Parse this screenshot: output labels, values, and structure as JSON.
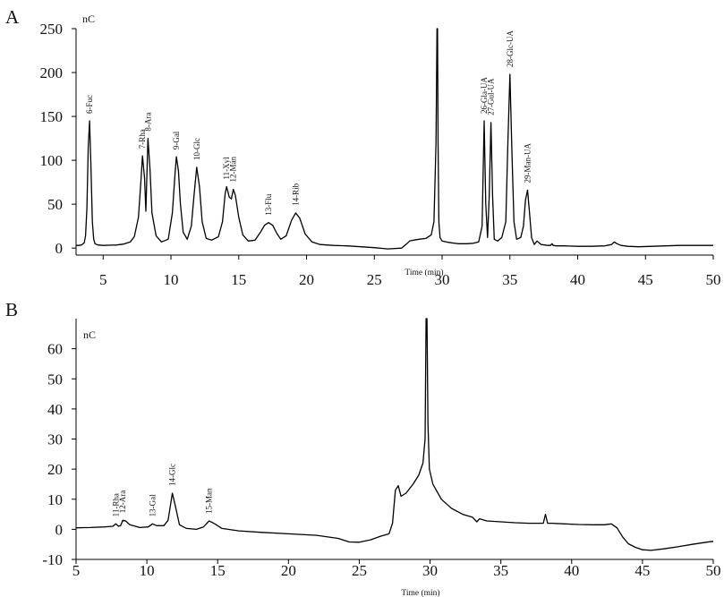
{
  "chart_data": [
    {
      "panel": "A",
      "type": "line",
      "ylabel": "nC",
      "xlabel": "Time (min)",
      "xlim": [
        3,
        50
      ],
      "ylim": [
        -8,
        250
      ],
      "xticks": [
        5,
        10,
        15,
        20,
        25,
        30,
        35,
        40,
        45,
        50
      ],
      "yticks": [
        0,
        50,
        100,
        150,
        200,
        250
      ],
      "baseline": 2.5,
      "peaks": [
        {
          "label": "6-Fuc",
          "x": 4.0,
          "y": 145
        },
        {
          "label": "7-Rha",
          "x": 7.9,
          "y": 105
        },
        {
          "label": "8-Ara",
          "x": 8.3,
          "y": 125
        },
        {
          "label": "9-Gal",
          "x": 10.4,
          "y": 104
        },
        {
          "label": "10-Glc",
          "x": 11.9,
          "y": 92
        },
        {
          "label": "11-Xyl",
          "x": 14.1,
          "y": 70
        },
        {
          "label": "12-Man",
          "x": 14.6,
          "y": 67
        },
        {
          "label": "13-Flu",
          "x": 17.2,
          "y": 29
        },
        {
          "label": "14-Rib",
          "x": 19.2,
          "y": 40
        },
        {
          "label": "26-Gla-UA",
          "x": 33.1,
          "y": 145
        },
        {
          "label": "27-Gul-UA",
          "x": 33.6,
          "y": 143
        },
        {
          "label": "28-Glc-UA",
          "x": 35.0,
          "y": 198
        },
        {
          "label": "29-Man-UA",
          "x": 36.3,
          "y": 66
        }
      ],
      "series": [
        {
          "x": [
            3.0,
            3.2,
            3.4,
            3.6,
            3.7,
            3.8,
            3.9,
            4.0,
            4.1,
            4.2,
            4.3,
            4.4,
            4.6,
            5.0,
            6.0,
            6.5,
            7.0,
            7.3,
            7.6,
            7.8,
            7.9,
            8.05,
            8.15,
            8.3,
            8.45,
            8.6,
            8.9,
            9.3,
            9.8,
            10.1,
            10.3,
            10.4,
            10.55,
            10.7,
            10.9,
            11.2,
            11.5,
            11.7,
            11.9,
            12.1,
            12.3,
            12.6,
            13.0,
            13.5,
            13.8,
            14.0,
            14.1,
            14.3,
            14.45,
            14.6,
            14.75,
            15.0,
            15.3,
            15.7,
            16.2,
            16.6,
            16.9,
            17.2,
            17.5,
            17.8,
            18.1,
            18.5,
            18.9,
            19.2,
            19.5,
            19.9,
            20.4,
            21.0,
            22.0,
            23.0,
            24.0,
            25.0,
            26.0,
            27.0,
            27.4,
            27.6,
            27.9,
            28.3,
            28.8,
            29.2,
            29.4,
            29.55,
            29.62,
            29.66,
            29.7,
            29.76,
            29.85,
            30.0,
            30.3,
            30.7,
            31.2,
            31.8,
            32.3,
            32.7,
            32.95,
            33.1,
            33.22,
            33.35,
            33.48,
            33.6,
            33.72,
            33.85,
            34.1,
            34.4,
            34.7,
            34.85,
            35.0,
            35.15,
            35.3,
            35.5,
            35.8,
            36.0,
            36.15,
            36.3,
            36.45,
            36.6,
            36.8,
            37.0,
            37.3,
            37.8,
            38.0,
            38.1,
            38.2,
            38.4,
            39.0,
            40.0,
            41.0,
            42.0,
            42.5,
            42.7,
            42.9,
            43.2,
            43.7,
            44.5,
            45.5,
            46.5,
            47.5,
            48.5,
            49.5,
            50.0
          ],
          "y": [
            3,
            3,
            3.5,
            6,
            14,
            45,
            115,
            145,
            90,
            30,
            10,
            5,
            3.5,
            3,
            3.5,
            4.5,
            7,
            13,
            35,
            80,
            105,
            80,
            42,
            125,
            90,
            40,
            14,
            7,
            10,
            40,
            85,
            104,
            88,
            50,
            18,
            10,
            25,
            60,
            92,
            70,
            30,
            11,
            9,
            13,
            30,
            62,
            70,
            58,
            56,
            67,
            60,
            35,
            15,
            8,
            9,
            18,
            26,
            29,
            26,
            17,
            10,
            14,
            32,
            40,
            34,
            16,
            7,
            4,
            3,
            2.5,
            1.5,
            0.5,
            -1,
            0,
            5,
            8,
            9,
            10,
            11,
            15,
            30,
            120,
            250,
            250,
            120,
            30,
            12,
            8,
            7,
            6,
            5,
            5,
            5.5,
            7,
            25,
            145,
            50,
            12,
            60,
            143,
            60,
            10,
            8,
            12,
            30,
            120,
            198,
            110,
            30,
            10,
            12,
            25,
            55,
            66,
            40,
            12,
            4,
            8,
            4,
            3,
            3,
            5,
            3,
            2.5,
            2.5,
            2,
            2,
            2.5,
            4,
            7,
            5,
            3,
            2,
            1.5,
            2,
            2.5,
            3,
            3,
            3,
            3
          ]
        }
      ]
    },
    {
      "panel": "B",
      "type": "line",
      "ylabel": "nC",
      "xlabel": "Time (min)",
      "xlim": [
        5,
        50
      ],
      "ylim": [
        -10,
        70
      ],
      "xticks": [
        5,
        10,
        15,
        20,
        25,
        30,
        35,
        40,
        45,
        50
      ],
      "yticks": [
        -10,
        0,
        10,
        20,
        30,
        40,
        50,
        60
      ],
      "peaks": [
        {
          "label": "11-Rha",
          "x": 7.8,
          "y": 1.8
        },
        {
          "label": "12-Ara",
          "x": 8.3,
          "y": 3.0
        },
        {
          "label": "13-Gal",
          "x": 10.4,
          "y": 1.8
        },
        {
          "label": "14-Glc",
          "x": 11.8,
          "y": 12.0
        },
        {
          "label": "15-Man",
          "x": 14.4,
          "y": 2.8
        }
      ],
      "series": [
        {
          "x": [
            5.0,
            6.0,
            7.0,
            7.6,
            7.8,
            8.0,
            8.15,
            8.3,
            8.5,
            8.8,
            9.5,
            10.1,
            10.4,
            10.7,
            11.2,
            11.5,
            11.8,
            12.05,
            12.3,
            12.8,
            13.5,
            14.0,
            14.4,
            14.8,
            15.3,
            16.5,
            18.0,
            20.0,
            22.0,
            23.5,
            24.3,
            25.0,
            25.8,
            26.5,
            27.1,
            27.35,
            27.55,
            27.75,
            27.95,
            28.3,
            28.8,
            29.2,
            29.5,
            29.65,
            29.72,
            29.78,
            29.85,
            29.95,
            30.2,
            30.8,
            31.5,
            32.3,
            33.0,
            33.3,
            33.5,
            34.0,
            35.0,
            36.0,
            37.0,
            38.0,
            38.15,
            38.3,
            38.6,
            39.5,
            40.5,
            41.5,
            42.3,
            42.8,
            43.2,
            43.6,
            44.0,
            44.5,
            45.0,
            45.6,
            46.5,
            47.5,
            48.5,
            49.5,
            50.0
          ],
          "y": [
            0.5,
            0.6,
            0.8,
            1.0,
            1.8,
            1.0,
            1.2,
            3.0,
            2.8,
            1.5,
            0.6,
            0.8,
            1.8,
            1.2,
            1.2,
            3.0,
            12.0,
            7.0,
            1.5,
            0.3,
            0.0,
            0.8,
            2.8,
            1.8,
            0.3,
            -0.5,
            -1.0,
            -1.5,
            -2.0,
            -3.0,
            -4.2,
            -4.3,
            -3.5,
            -2.3,
            -1.5,
            2.0,
            13.0,
            14.5,
            11.0,
            12.0,
            15.0,
            18.0,
            22.0,
            30.0,
            70.0,
            70.0,
            35.0,
            20.0,
            15.0,
            10.0,
            7.0,
            5.0,
            4.0,
            2.5,
            3.5,
            2.8,
            2.5,
            2.2,
            2.0,
            2.0,
            5.0,
            2.0,
            2.0,
            1.8,
            1.6,
            1.5,
            1.5,
            1.8,
            0.5,
            -2.5,
            -4.8,
            -6.0,
            -6.8,
            -7.0,
            -6.5,
            -5.8,
            -5.0,
            -4.3,
            -4.0
          ]
        }
      ]
    }
  ]
}
